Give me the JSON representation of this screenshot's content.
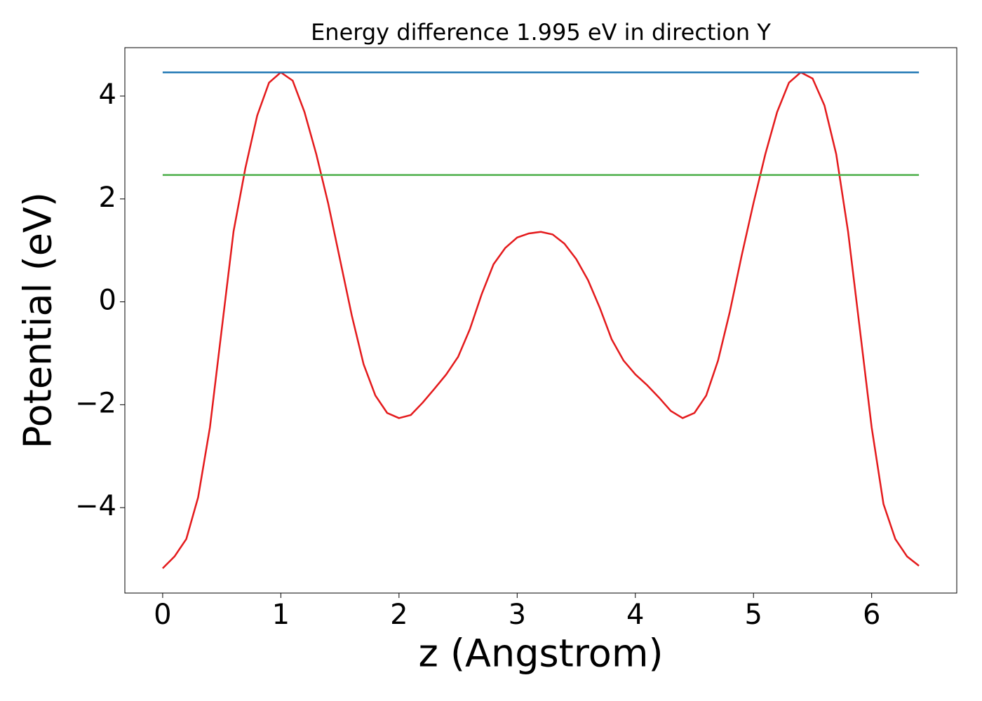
{
  "chart_data": {
    "type": "line",
    "title": "Energy difference 1.995 eV in direction Y",
    "x_label": "z (Angstrom)",
    "y_label": "Potential (eV)",
    "xlim": [
      -0.32,
      6.72
    ],
    "ylim": [
      -5.66,
      4.94
    ],
    "xticks": [
      0,
      1,
      2,
      3,
      4,
      5,
      6
    ],
    "yticks": [
      {
        "value": -4,
        "label": "−4"
      },
      {
        "value": -2,
        "label": "−2"
      },
      0,
      2,
      4
    ],
    "series": [
      {
        "color": "#e41a1c",
        "x": [
          0,
          0.1,
          0.2,
          0.3,
          0.4,
          0.5,
          0.6,
          0.7,
          0.8,
          0.9,
          1.0,
          1.1,
          1.2,
          1.3,
          1.4,
          1.5,
          1.6,
          1.7,
          1.8,
          1.9,
          2.0,
          2.1,
          2.2,
          2.3,
          2.4,
          2.5,
          2.6,
          2.7,
          2.8,
          2.9,
          3.0,
          3.1,
          3.2,
          3.3,
          3.4,
          3.5,
          3.6,
          3.7,
          3.8,
          3.9,
          4.0,
          4.1,
          4.2,
          4.3,
          4.4,
          4.5,
          4.6,
          4.7,
          4.8,
          4.9,
          5.0,
          5.1,
          5.2,
          5.3,
          5.4,
          5.5,
          5.6,
          5.7,
          5.8,
          5.9,
          6.0,
          6.1,
          6.2,
          6.3,
          6.4
        ],
        "values": [
          -5.18,
          -4.95,
          -4.61,
          -3.8,
          -2.44,
          -0.53,
          1.37,
          2.6,
          3.62,
          4.26,
          4.46,
          4.3,
          3.69,
          2.87,
          1.92,
          0.83,
          -0.26,
          -1.21,
          -1.82,
          -2.16,
          -2.26,
          -2.2,
          -1.96,
          -1.69,
          -1.41,
          -1.07,
          -0.53,
          0.15,
          0.73,
          1.05,
          1.25,
          1.33,
          1.36,
          1.31,
          1.13,
          0.83,
          0.42,
          -0.12,
          -0.73,
          -1.14,
          -1.41,
          -1.62,
          -1.86,
          -2.12,
          -2.26,
          -2.16,
          -1.82,
          -1.14,
          -0.19,
          0.9,
          1.92,
          2.87,
          3.69,
          4.26,
          4.46,
          4.34,
          3.82,
          2.87,
          1.37,
          -0.53,
          -2.44,
          -3.93,
          -4.61,
          -4.95,
          -5.13
        ]
      },
      {
        "color": "#1f77b4",
        "x": [
          0,
          6.4
        ],
        "values": [
          4.46,
          4.46
        ]
      },
      {
        "color": "#4daf4a",
        "x": [
          0,
          6.4
        ],
        "values": [
          2.465,
          2.465
        ]
      }
    ]
  }
}
